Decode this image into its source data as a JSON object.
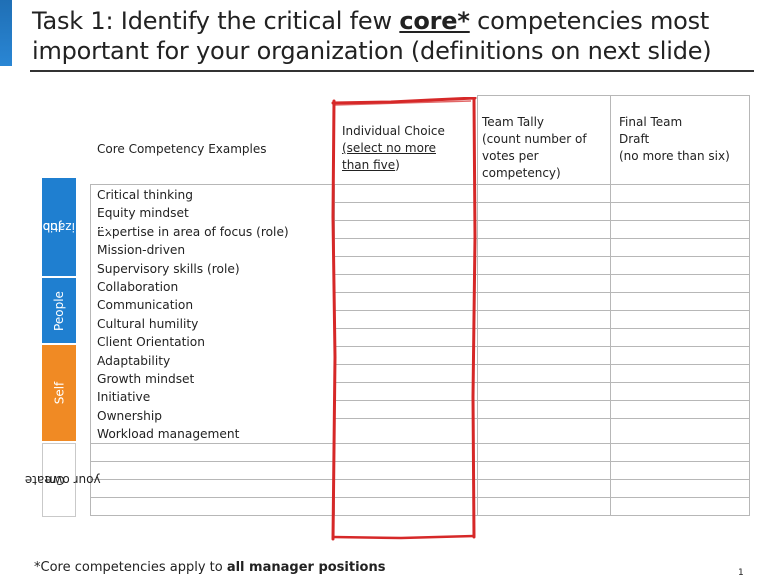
{
  "title": {
    "prefix": "Task 1: Identify the critical few ",
    "emphasis": "core*",
    "suffix": " competencies most important for your organization (definitions on next slide)"
  },
  "table": {
    "headers": {
      "examples": "Core Competency Examples",
      "individual_choice_line1": "Individual Choice",
      "individual_choice_line2_underlined": "(select no more",
      "individual_choice_line3_underlined": "than five",
      "individual_choice_line3_tail": ")",
      "team_tally": [
        "Team Tally",
        "(count number of",
        "votes per",
        "competency)"
      ],
      "final_team": [
        "Final Team",
        "Draft",
        "(no more than six)"
      ]
    },
    "competencies": [
      "Critical thinking",
      "Equity mindset",
      "Expertise in area of focus (role)",
      "Mission-driven",
      "Supervisory skills (role)",
      "Collaboration",
      "Communication",
      "Cultural humility",
      "Client Orientation",
      "Adaptability",
      "Growth mindset",
      "Initiative",
      "Ownership",
      "Workload management"
    ],
    "categories": [
      {
        "label_line1": "Job &",
        "label_line2": "Organization"
      },
      {
        "label_line1": "People"
      },
      {
        "label_line1": "Self"
      },
      {
        "label_line1": "Create",
        "label_line2": "your own"
      }
    ]
  },
  "footnote": {
    "prefix": "*Core competencies apply to ",
    "bold": "all manager positions"
  },
  "page_number": "1",
  "colors": {
    "category_blue": "#1f7fd0",
    "category_orange": "#f08a24",
    "highlight_red": "#d62828",
    "corner_accent": "#1f6fb5"
  }
}
